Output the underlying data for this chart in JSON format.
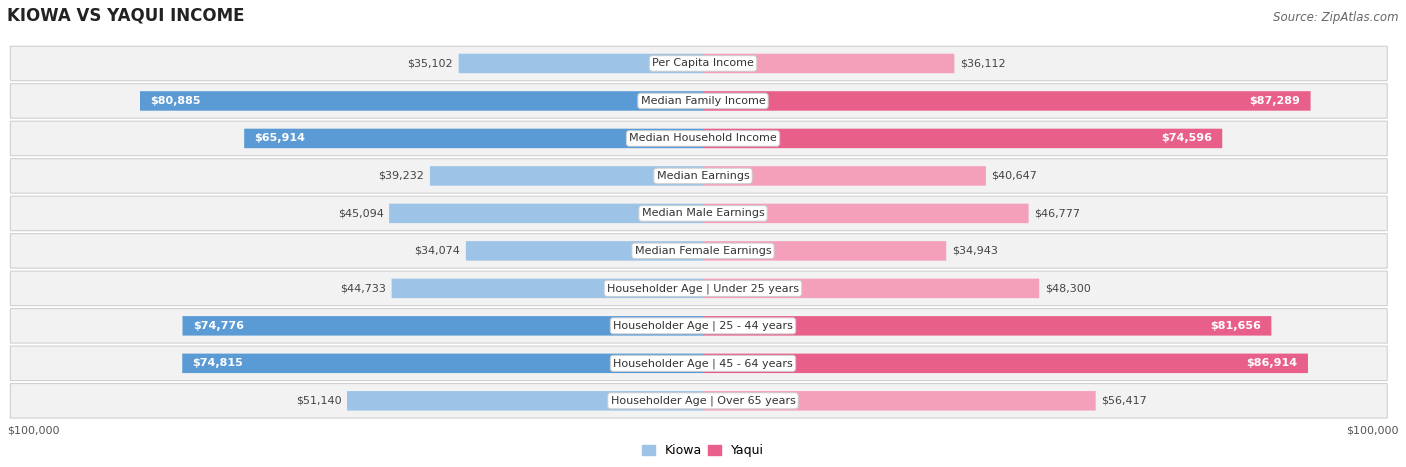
{
  "title": "KIOWA VS YAQUI INCOME",
  "source": "Source: ZipAtlas.com",
  "categories": [
    "Per Capita Income",
    "Median Family Income",
    "Median Household Income",
    "Median Earnings",
    "Median Male Earnings",
    "Median Female Earnings",
    "Householder Age | Under 25 years",
    "Householder Age | 25 - 44 years",
    "Householder Age | 45 - 64 years",
    "Householder Age | Over 65 years"
  ],
  "kiowa_values": [
    35102,
    80885,
    65914,
    39232,
    45094,
    34074,
    44733,
    74776,
    74815,
    51140
  ],
  "yaqui_values": [
    36112,
    87289,
    74596,
    40647,
    46777,
    34943,
    48300,
    81656,
    86914,
    56417
  ],
  "kiowa_labels": [
    "$35,102",
    "$80,885",
    "$65,914",
    "$39,232",
    "$45,094",
    "$34,074",
    "$44,733",
    "$74,776",
    "$74,815",
    "$51,140"
  ],
  "yaqui_labels": [
    "$36,112",
    "$87,289",
    "$74,596",
    "$40,647",
    "$46,777",
    "$34,943",
    "$48,300",
    "$81,656",
    "$86,914",
    "$56,417"
  ],
  "kiowa_color_strong": "#5b9bd5",
  "kiowa_color_light": "#9dc3e6",
  "yaqui_color_strong": "#e8608a",
  "yaqui_color_light": "#f4a0bb",
  "strong_threshold": 0.6,
  "max_value": 100000,
  "bg_color": "#ffffff",
  "row_bg_color": "#f2f2f2",
  "title_fontsize": 12,
  "source_fontsize": 8.5,
  "label_fontsize": 8,
  "cat_fontsize": 8,
  "legend_fontsize": 9
}
